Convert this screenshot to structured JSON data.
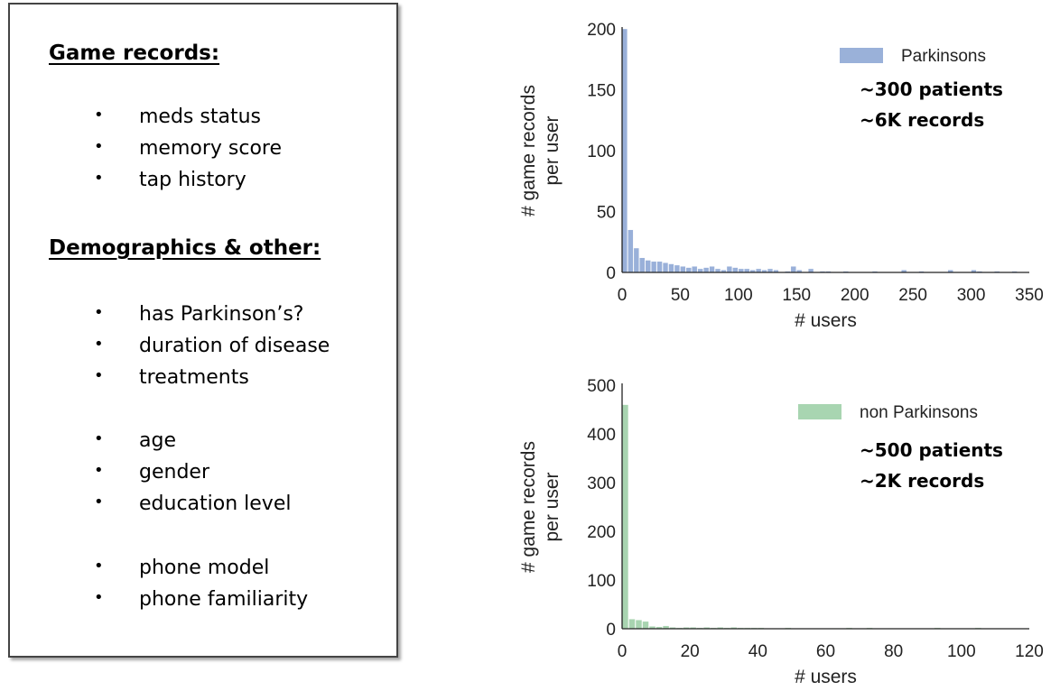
{
  "left_panel": {
    "sections": [
      {
        "heading": "Game records:",
        "groups": [
          [
            "meds status",
            "memory score",
            "tap history"
          ]
        ]
      },
      {
        "heading": "Demographics & other:",
        "groups": [
          [
            "has Parkinson’s?",
            "duration of disease",
            "treatments"
          ],
          [
            "age",
            "gender",
            "education level"
          ],
          [
            "phone model",
            "phone familiarity"
          ]
        ]
      }
    ],
    "bullet": "•"
  },
  "chart_data": [
    {
      "type": "bar",
      "subtype": "histogram",
      "xlabel": "# users",
      "ylabel": [
        "# game records",
        "per user"
      ],
      "xlim": [
        0,
        350
      ],
      "ylim": [
        0,
        200
      ],
      "xticks": [
        0,
        50,
        100,
        150,
        200,
        250,
        300,
        350
      ],
      "yticks": [
        0,
        50,
        100,
        150,
        200
      ],
      "bin_width": 5,
      "legend_position": "top-right",
      "series": [
        {
          "name": "Parkinsons",
          "color": "#8fa8d5",
          "bins": [
            {
              "x": 0,
              "y": 200
            },
            {
              "x": 5,
              "y": 35
            },
            {
              "x": 10,
              "y": 20
            },
            {
              "x": 15,
              "y": 12
            },
            {
              "x": 20,
              "y": 10
            },
            {
              "x": 25,
              "y": 9
            },
            {
              "x": 30,
              "y": 9
            },
            {
              "x": 35,
              "y": 8
            },
            {
              "x": 40,
              "y": 7
            },
            {
              "x": 45,
              "y": 6
            },
            {
              "x": 50,
              "y": 5
            },
            {
              "x": 55,
              "y": 4
            },
            {
              "x": 60,
              "y": 5
            },
            {
              "x": 65,
              "y": 3
            },
            {
              "x": 70,
              "y": 4
            },
            {
              "x": 75,
              "y": 5
            },
            {
              "x": 80,
              "y": 3
            },
            {
              "x": 85,
              "y": 2
            },
            {
              "x": 90,
              "y": 5
            },
            {
              "x": 95,
              "y": 4
            },
            {
              "x": 100,
              "y": 3
            },
            {
              "x": 105,
              "y": 3
            },
            {
              "x": 110,
              "y": 2
            },
            {
              "x": 115,
              "y": 3
            },
            {
              "x": 120,
              "y": 2
            },
            {
              "x": 125,
              "y": 3
            },
            {
              "x": 130,
              "y": 2
            },
            {
              "x": 140,
              "y": 1
            },
            {
              "x": 145,
              "y": 5
            },
            {
              "x": 150,
              "y": 2
            },
            {
              "x": 160,
              "y": 3
            },
            {
              "x": 170,
              "y": 1
            },
            {
              "x": 175,
              "y": 1
            },
            {
              "x": 190,
              "y": 1
            },
            {
              "x": 215,
              "y": 1
            },
            {
              "x": 240,
              "y": 2
            },
            {
              "x": 255,
              "y": 1
            },
            {
              "x": 280,
              "y": 2
            },
            {
              "x": 300,
              "y": 2
            },
            {
              "x": 305,
              "y": 1
            },
            {
              "x": 320,
              "y": 1
            },
            {
              "x": 335,
              "y": 1
            }
          ]
        }
      ],
      "annotations": [
        "~300 patients",
        "~6K records"
      ]
    },
    {
      "type": "bar",
      "subtype": "histogram",
      "xlabel": "# users",
      "ylabel": [
        "# game records",
        "per user"
      ],
      "xlim": [
        0,
        120
      ],
      "ylim": [
        0,
        500
      ],
      "xticks": [
        0,
        20,
        40,
        60,
        80,
        100,
        120
      ],
      "yticks": [
        0,
        100,
        200,
        300,
        400,
        500
      ],
      "bin_width": 2,
      "legend_position": "top-right",
      "series": [
        {
          "name": "non Parkinsons",
          "color": "#9fd0a8",
          "bins": [
            {
              "x": 0,
              "y": 460
            },
            {
              "x": 2,
              "y": 20
            },
            {
              "x": 4,
              "y": 18
            },
            {
              "x": 6,
              "y": 15
            },
            {
              "x": 8,
              "y": 5
            },
            {
              "x": 10,
              "y": 4
            },
            {
              "x": 12,
              "y": 6
            },
            {
              "x": 14,
              "y": 3
            },
            {
              "x": 16,
              "y": 2
            },
            {
              "x": 18,
              "y": 3
            },
            {
              "x": 20,
              "y": 3
            },
            {
              "x": 22,
              "y": 2
            },
            {
              "x": 24,
              "y": 3
            },
            {
              "x": 26,
              "y": 2
            },
            {
              "x": 28,
              "y": 3
            },
            {
              "x": 30,
              "y": 2
            },
            {
              "x": 32,
              "y": 3
            },
            {
              "x": 34,
              "y": 2
            },
            {
              "x": 36,
              "y": 2
            },
            {
              "x": 38,
              "y": 2
            },
            {
              "x": 40,
              "y": 2
            },
            {
              "x": 44,
              "y": 1
            },
            {
              "x": 48,
              "y": 2
            },
            {
              "x": 52,
              "y": 1
            },
            {
              "x": 56,
              "y": 1
            },
            {
              "x": 62,
              "y": 1
            },
            {
              "x": 66,
              "y": 2
            },
            {
              "x": 72,
              "y": 2
            },
            {
              "x": 78,
              "y": 1
            },
            {
              "x": 86,
              "y": 1
            },
            {
              "x": 92,
              "y": 2
            },
            {
              "x": 104,
              "y": 2
            },
            {
              "x": 110,
              "y": 1
            },
            {
              "x": 118,
              "y": 1
            }
          ]
        }
      ],
      "annotations": [
        "~500 patients",
        "~2K records"
      ]
    }
  ]
}
